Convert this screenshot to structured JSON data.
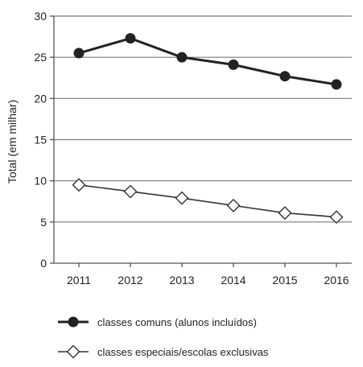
{
  "chart_data": {
    "type": "line",
    "x": [
      "2011",
      "2012",
      "2013",
      "2014",
      "2015",
      "2016"
    ],
    "ylabel": "Total (em milhar)",
    "xlabel": "",
    "ylim": [
      0,
      30
    ],
    "yticks": [
      0,
      5,
      10,
      15,
      20,
      25,
      30
    ],
    "grid": true,
    "legend_position": "bottom",
    "series": [
      {
        "name": "classes comuns (alunos incluídos)",
        "values": [
          25.5,
          27.3,
          25.0,
          24.1,
          22.7,
          21.7
        ],
        "marker": "filled-circle",
        "color": "#222222"
      },
      {
        "name": "classes especiais/escolas exclusivas",
        "values": [
          9.5,
          8.7,
          7.9,
          7.0,
          6.1,
          5.6
        ],
        "marker": "open-diamond",
        "color": "#333333"
      }
    ]
  }
}
